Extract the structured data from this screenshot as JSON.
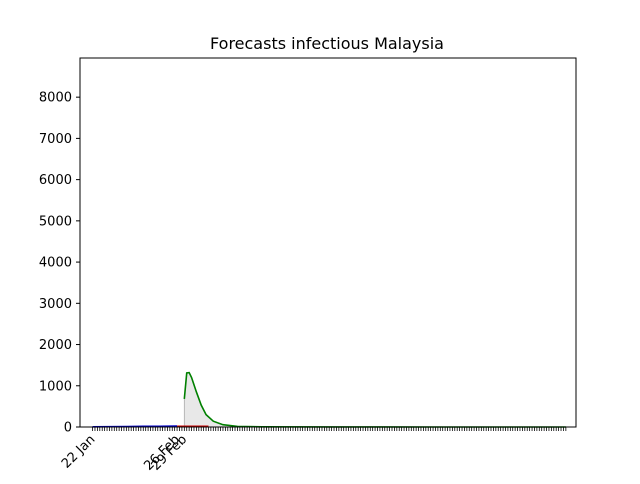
{
  "chart_data": {
    "type": "line",
    "title": "Forecasts infectious Malaysia",
    "xlabel": "",
    "ylabel": "",
    "ylim": [
      0,
      8950
    ],
    "x_tick_labels": [
      "22 Jan",
      "26 Feb",
      "29 Feb"
    ],
    "yticks": [
      0,
      1000,
      2000,
      3000,
      4000,
      5000,
      6000,
      7000,
      8000
    ],
    "grid": false,
    "legend": "none",
    "colors": {
      "observed": "#0000cc",
      "forecast": "#008000",
      "band": "#e8e8e8",
      "marker": "#cc0000"
    },
    "series": [
      {
        "points": [
          [
            "2020-01-22",
            4
          ],
          [
            "2020-01-29",
            7
          ],
          [
            "2020-02-05",
            12
          ],
          [
            "2020-02-12",
            16
          ],
          [
            "2020-02-19",
            18
          ],
          [
            "2020-02-26",
            22
          ]
        ]
      },
      {
        "points": [
          [
            "2020-02-29",
            680
          ],
          [
            "2020-03-01",
            1310
          ],
          [
            "2020-03-02",
            1320
          ],
          [
            "2020-03-03",
            1200
          ],
          [
            "2020-03-05",
            850
          ],
          [
            "2020-03-07",
            530
          ],
          [
            "2020-03-09",
            300
          ],
          [
            "2020-03-12",
            140
          ],
          [
            "2020-03-16",
            55
          ],
          [
            "2020-03-22",
            15
          ],
          [
            "2020-04-01",
            4
          ],
          [
            "2020-05-01",
            1
          ],
          [
            "2020-06-15",
            0
          ],
          [
            "2020-08-05",
            0
          ]
        ]
      }
    ]
  }
}
